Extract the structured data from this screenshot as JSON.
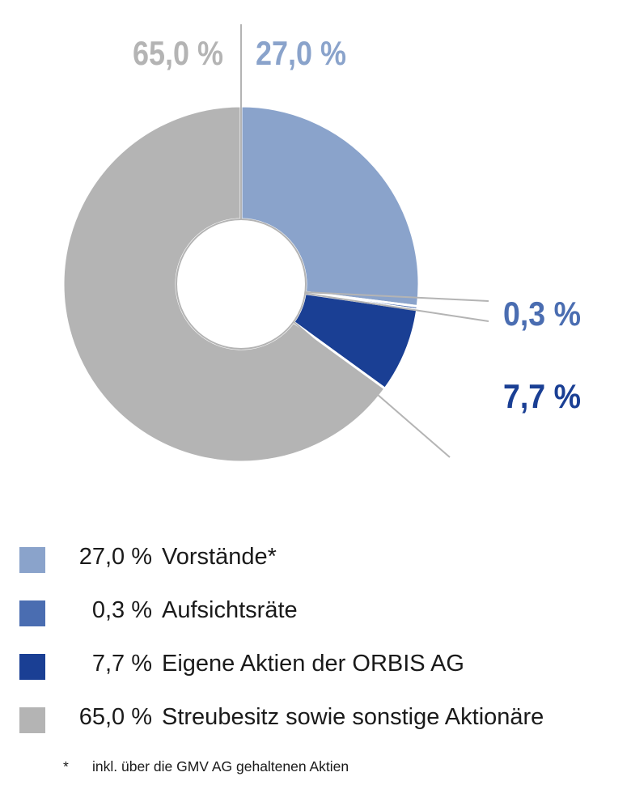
{
  "chart_data": {
    "type": "pie",
    "subtype": "donut",
    "slices": [
      {
        "value": 27.0,
        "label": "27,0 %",
        "legend_pct": "27,0 %",
        "legend_text": "Vorstände*",
        "color": "#8aa3cb",
        "label_color": "#8aa3cb"
      },
      {
        "value": 0.3,
        "label": "0,3 %",
        "legend_pct": "0,3 %",
        "legend_text": "Aufsichtsräte",
        "color": "#4a6db1",
        "label_color": "#4a6db1"
      },
      {
        "value": 7.7,
        "label": "7,7 %",
        "legend_pct": "7,7 %",
        "legend_text": "Eigene Aktien der ORBIS AG",
        "color": "#1a3f94",
        "label_color": "#1a3f94"
      },
      {
        "value": 65.0,
        "label": "65,0 %",
        "legend_pct": "65,0 %",
        "legend_text": "Streubesitz sowie sonstige Aktionäre",
        "color": "#b4b4b4",
        "label_color": "#b4b4b4"
      }
    ]
  },
  "footnote": {
    "mark": "*",
    "text": "inkl. über die GMV AG gehaltenen Aktien"
  }
}
